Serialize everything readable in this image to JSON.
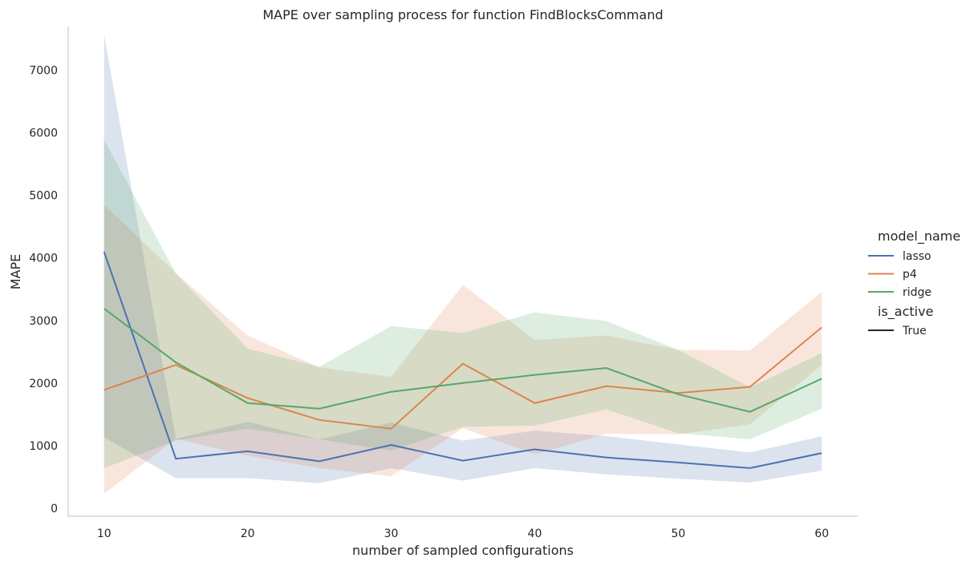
{
  "chart_data": {
    "type": "line",
    "title": "MAPE over sampling process for function FindBlocksCommand",
    "xlabel": "number of sampled configurations",
    "ylabel": "MAPE",
    "xlim": [
      7.5,
      62.5
    ],
    "ylim": [
      -130,
      7700
    ],
    "x_ticks": [
      10,
      20,
      30,
      40,
      50,
      60
    ],
    "y_ticks": [
      0,
      1000,
      2000,
      3000,
      4000,
      5000,
      6000,
      7000
    ],
    "x": [
      10,
      15,
      20,
      25,
      30,
      35,
      40,
      45,
      50,
      55,
      60
    ],
    "grid": false,
    "legend": {
      "position": "right",
      "hue_title": "model_name",
      "style_title": "is_active",
      "style_entries": [
        {
          "label": "True",
          "color": "#262626"
        }
      ]
    },
    "series": [
      {
        "name": "lasso",
        "color": "#4c72b0",
        "values": [
          4100,
          790,
          910,
          750,
          1010,
          760,
          940,
          810,
          730,
          640,
          880
        ],
        "ci_lower": [
          1130,
          480,
          480,
          400,
          640,
          440,
          640,
          540,
          470,
          410,
          600
        ],
        "ci_upper": [
          7570,
          1110,
          1380,
          1100,
          1370,
          1080,
          1240,
          1150,
          1020,
          890,
          1150
        ]
      },
      {
        "name": "p4",
        "color": "#dd8452",
        "values": [
          1890,
          2290,
          1760,
          1410,
          1270,
          2310,
          1680,
          1950,
          1840,
          1940,
          2890
        ],
        "ci_lower": [
          230,
          1110,
          840,
          640,
          510,
          1280,
          860,
          1190,
          1180,
          1340,
          2290
        ],
        "ci_upper": [
          4850,
          3760,
          2760,
          2250,
          2100,
          3570,
          2690,
          2760,
          2530,
          2520,
          3460
        ]
      },
      {
        "name": "ridge",
        "color": "#55a868",
        "values": [
          3190,
          2330,
          1680,
          1590,
          1860,
          2000,
          2130,
          2240,
          1820,
          1540,
          2070
        ],
        "ci_lower": [
          640,
          1080,
          1270,
          1100,
          920,
          1300,
          1320,
          1580,
          1200,
          1100,
          1590
        ],
        "ci_upper": [
          5890,
          3750,
          2550,
          2260,
          2910,
          2800,
          3130,
          2990,
          2530,
          1930,
          2480
        ]
      }
    ]
  }
}
